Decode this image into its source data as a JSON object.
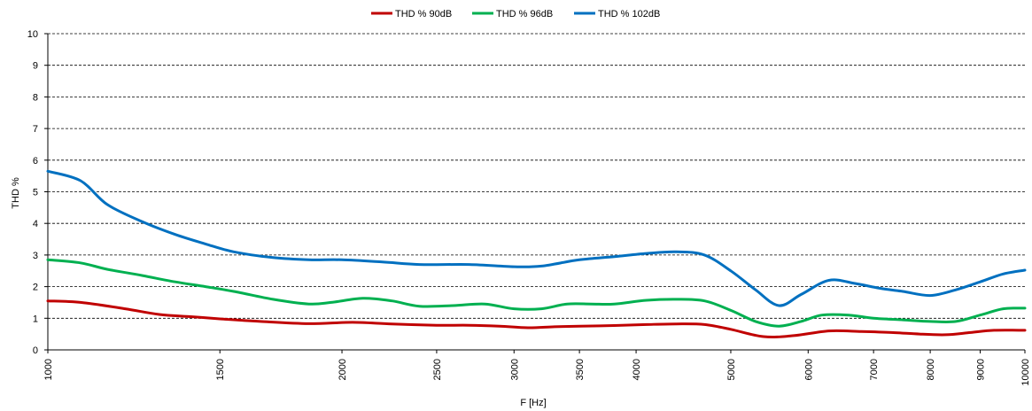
{
  "chart_data": {
    "type": "line",
    "xlabel": "F [Hz]",
    "ylabel": "THD %",
    "x_scale": "log",
    "xlim": [
      1000,
      10000
    ],
    "ylim": [
      0,
      10
    ],
    "x_ticks": [
      1000,
      1500,
      2000,
      2500,
      3000,
      3500,
      4000,
      5000,
      6000,
      7000,
      8000,
      9000,
      10000
    ],
    "x_tick_labels": [
      "1000",
      "1500",
      "2000",
      "2500",
      "3000",
      "3500",
      "4000",
      "5000",
      "6000",
      "7000",
      "8000",
      "9000",
      "10000"
    ],
    "y_ticks": [
      0,
      1,
      2,
      3,
      4,
      5,
      6,
      7,
      8,
      9,
      10
    ],
    "y_tick_labels": [
      "0",
      "1",
      "2",
      "3",
      "4",
      "5",
      "6",
      "7",
      "8",
      "9",
      "10"
    ],
    "grid": "horizontal dashed",
    "legend_position": "top-center",
    "series": [
      {
        "name": "THD % 90dB",
        "color": "#c00000",
        "x": [
          1000,
          1080,
          1200,
          1300,
          1400,
          1500,
          1650,
          1850,
          2050,
          2250,
          2500,
          2700,
          2900,
          3100,
          3300,
          3500,
          3800,
          4100,
          4400,
          4700,
          5000,
          5400,
          5800,
          6300,
          6800,
          7300,
          7800,
          8300,
          8800,
          9300,
          10000
        ],
        "values": [
          1.55,
          1.5,
          1.3,
          1.12,
          1.05,
          0.98,
          0.9,
          0.83,
          0.87,
          0.82,
          0.78,
          0.78,
          0.75,
          0.7,
          0.73,
          0.75,
          0.77,
          0.8,
          0.82,
          0.8,
          0.65,
          0.42,
          0.45,
          0.6,
          0.58,
          0.55,
          0.5,
          0.48,
          0.55,
          0.62,
          0.62
        ]
      },
      {
        "name": "THD % 96dB",
        "color": "#00b050",
        "x": [
          1000,
          1080,
          1150,
          1250,
          1350,
          1450,
          1550,
          1700,
          1850,
          1950,
          2100,
          2250,
          2400,
          2600,
          2800,
          3000,
          3200,
          3400,
          3600,
          3800,
          4100,
          4400,
          4700,
          5000,
          5300,
          5600,
          5900,
          6200,
          6600,
          7000,
          7500,
          8000,
          8500,
          9000,
          9500,
          10000
        ],
        "values": [
          2.85,
          2.75,
          2.55,
          2.35,
          2.15,
          2.0,
          1.85,
          1.6,
          1.45,
          1.5,
          1.63,
          1.55,
          1.38,
          1.4,
          1.45,
          1.3,
          1.3,
          1.45,
          1.45,
          1.45,
          1.57,
          1.6,
          1.55,
          1.25,
          0.9,
          0.75,
          0.9,
          1.1,
          1.1,
          1.0,
          0.95,
          0.9,
          0.9,
          1.1,
          1.3,
          1.32
        ]
      },
      {
        "name": "THD % 102dB",
        "color": "#0070c0",
        "x": [
          1000,
          1080,
          1150,
          1250,
          1350,
          1450,
          1550,
          1700,
          1850,
          2000,
          2200,
          2400,
          2700,
          3000,
          3200,
          3500,
          3800,
          4100,
          4400,
          4700,
          5000,
          5300,
          5600,
          5900,
          6300,
          6700,
          7100,
          7500,
          8000,
          8500,
          9000,
          9500,
          10000
        ],
        "values": [
          5.65,
          5.35,
          4.6,
          4.05,
          3.65,
          3.35,
          3.1,
          2.92,
          2.85,
          2.85,
          2.78,
          2.7,
          2.7,
          2.63,
          2.65,
          2.85,
          2.95,
          3.05,
          3.1,
          3.0,
          2.5,
          1.9,
          1.4,
          1.75,
          2.2,
          2.1,
          1.95,
          1.85,
          1.72,
          1.9,
          2.15,
          2.4,
          2.52
        ]
      }
    ]
  }
}
